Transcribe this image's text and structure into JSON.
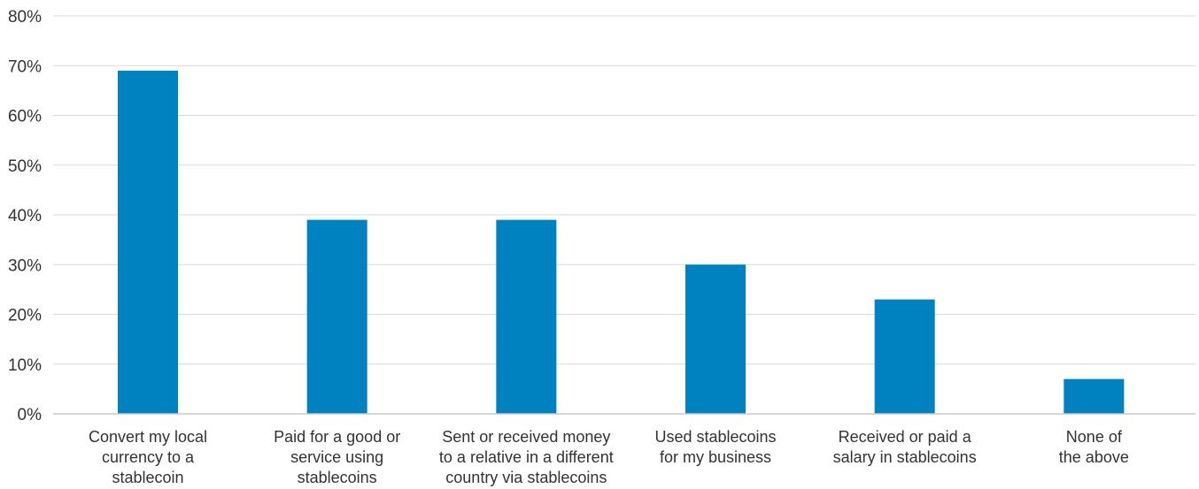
{
  "chart_data": {
    "type": "bar",
    "title": "",
    "xlabel": "",
    "ylabel": "",
    "ylim": [
      0,
      80
    ],
    "y_ticks": [
      "0%",
      "10%",
      "20%",
      "30%",
      "40%",
      "50%",
      "60%",
      "70%",
      "80%"
    ],
    "grid": true,
    "categories": [
      [
        "Convert my local",
        "currency to a",
        "stablecoin"
      ],
      [
        "Paid for a good or",
        "service using",
        "stablecoins"
      ],
      [
        "Sent or received money",
        "to a relative in a different",
        "country via stablecoins"
      ],
      [
        "Used stablecoins",
        "for my business"
      ],
      [
        "Received or paid a",
        "salary in stablecoins"
      ],
      [
        "None of",
        "the above"
      ]
    ],
    "values": [
      69,
      39,
      39,
      30,
      23,
      7
    ],
    "bar_color": "#0082c0"
  }
}
